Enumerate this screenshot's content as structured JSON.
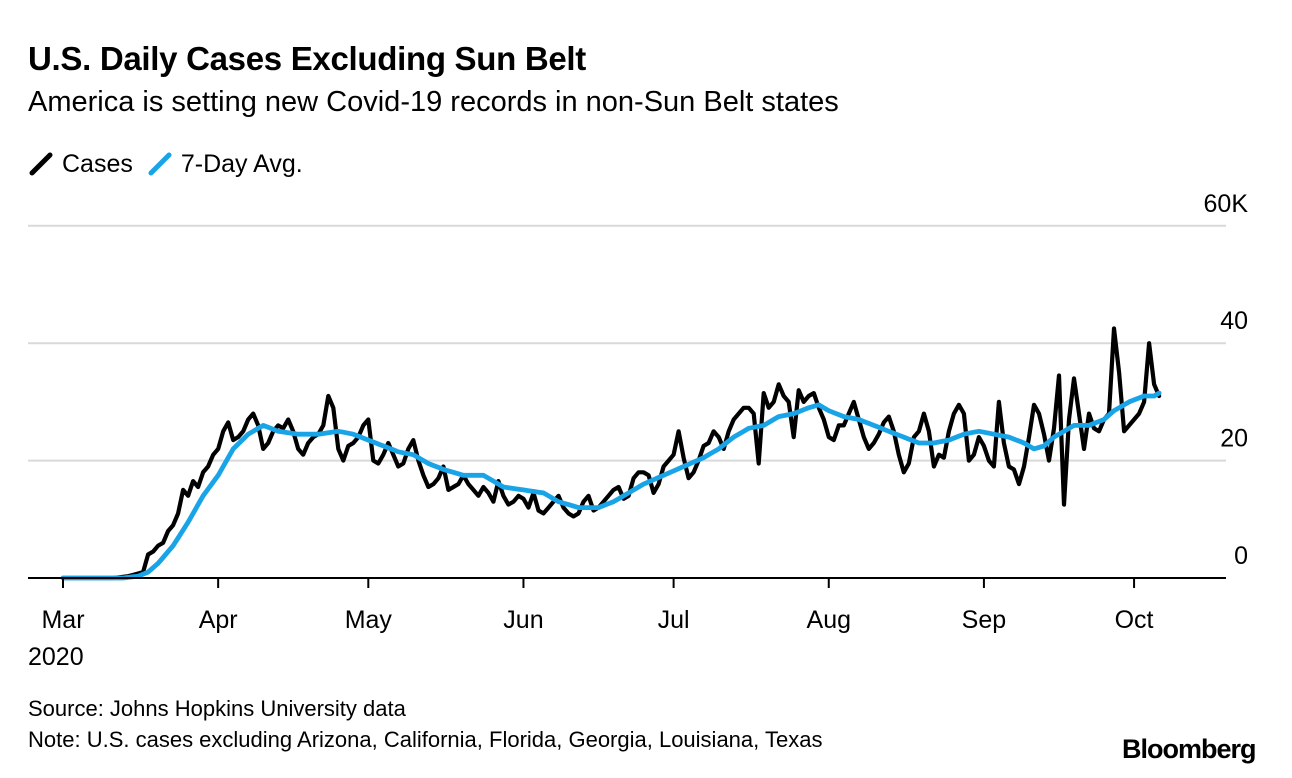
{
  "chart_data": {
    "type": "line",
    "title": "U.S. Daily Cases Excluding Sun Belt",
    "subtitle": "America is setting new Covid-19 records in non-Sun Belt states",
    "xlabel": "",
    "ylabel": "",
    "y_unit": "thousands",
    "ylim": [
      0,
      60
    ],
    "y_ticks": [
      {
        "value": 60,
        "label": "60K"
      },
      {
        "value": 40,
        "label": "40"
      },
      {
        "value": 20,
        "label": "20"
      },
      {
        "value": 0,
        "label": "0"
      }
    ],
    "x_start": "2020-03-01",
    "x_end": "2020-10-04",
    "x_ticks": [
      {
        "day": 0,
        "label": "Mar"
      },
      {
        "day": 31,
        "label": "Apr"
      },
      {
        "day": 61,
        "label": "May"
      },
      {
        "day": 92,
        "label": "Jun"
      },
      {
        "day": 122,
        "label": "Jul"
      },
      {
        "day": 153,
        "label": "Aug"
      },
      {
        "day": 184,
        "label": "Sep"
      },
      {
        "day": 214,
        "label": "Oct"
      }
    ],
    "x_year_label": "2020",
    "legend_position": "top-left",
    "grid": true,
    "series": [
      {
        "name": "Cases",
        "color": "#000000",
        "anchors": [
          [
            0,
            0
          ],
          [
            10,
            0
          ],
          [
            13,
            0.3
          ],
          [
            16,
            1
          ],
          [
            17,
            4
          ],
          [
            18,
            4.5
          ],
          [
            19,
            5.5
          ],
          [
            20,
            6
          ],
          [
            21,
            8
          ],
          [
            22,
            9
          ],
          [
            23,
            11
          ],
          [
            24,
            15
          ],
          [
            25,
            14
          ],
          [
            26,
            16.5
          ],
          [
            27,
            15.5
          ],
          [
            28,
            18
          ],
          [
            29,
            19
          ],
          [
            30,
            21
          ],
          [
            31,
            22
          ],
          [
            32,
            25
          ],
          [
            33,
            26.5
          ],
          [
            34,
            23.5
          ],
          [
            35,
            24
          ],
          [
            36,
            25
          ],
          [
            37,
            27
          ],
          [
            38,
            28
          ],
          [
            39,
            26
          ],
          [
            40,
            22
          ],
          [
            41,
            23
          ],
          [
            42,
            25
          ],
          [
            43,
            26
          ],
          [
            44,
            25.5
          ],
          [
            45,
            27
          ],
          [
            46,
            25
          ],
          [
            47,
            22
          ],
          [
            48,
            21
          ],
          [
            49,
            23
          ],
          [
            50,
            24
          ],
          [
            51,
            24.5
          ],
          [
            52,
            26
          ],
          [
            53,
            31
          ],
          [
            54,
            29
          ],
          [
            55,
            22
          ],
          [
            56,
            20
          ],
          [
            57,
            22.5
          ],
          [
            58,
            23
          ],
          [
            59,
            24
          ],
          [
            60,
            26
          ],
          [
            61,
            27
          ],
          [
            62,
            20
          ],
          [
            63,
            19.5
          ],
          [
            64,
            21
          ],
          [
            65,
            23
          ],
          [
            66,
            21
          ],
          [
            67,
            19
          ],
          [
            68,
            19.5
          ],
          [
            69,
            22
          ],
          [
            70,
            23.5
          ],
          [
            71,
            20
          ],
          [
            72,
            17.5
          ],
          [
            73,
            15.5
          ],
          [
            74,
            16
          ],
          [
            75,
            17
          ],
          [
            76,
            19
          ],
          [
            77,
            15
          ],
          [
            78,
            15.5
          ],
          [
            79,
            16
          ],
          [
            80,
            17.5
          ],
          [
            81,
            16
          ],
          [
            82,
            15
          ],
          [
            83,
            14
          ],
          [
            84,
            15.5
          ],
          [
            85,
            14.5
          ],
          [
            86,
            13
          ],
          [
            87,
            16.5
          ],
          [
            88,
            14
          ],
          [
            89,
            12.5
          ],
          [
            90,
            13
          ],
          [
            91,
            14
          ],
          [
            92,
            13.5
          ],
          [
            93,
            12
          ],
          [
            94,
            14.5
          ],
          [
            95,
            11.5
          ],
          [
            96,
            11
          ],
          [
            97,
            12
          ],
          [
            98,
            13
          ],
          [
            99,
            14
          ],
          [
            100,
            12
          ],
          [
            101,
            11
          ],
          [
            102,
            10.5
          ],
          [
            103,
            11
          ],
          [
            104,
            13
          ],
          [
            105,
            14
          ],
          [
            106,
            11.5
          ],
          [
            107,
            12
          ],
          [
            108,
            13
          ],
          [
            109,
            14
          ],
          [
            110,
            15
          ],
          [
            111,
            15.5
          ],
          [
            112,
            13.5
          ],
          [
            113,
            14
          ],
          [
            114,
            17
          ],
          [
            115,
            18
          ],
          [
            116,
            18
          ],
          [
            117,
            17.5
          ],
          [
            118,
            14.5
          ],
          [
            119,
            16
          ],
          [
            120,
            19
          ],
          [
            121,
            20
          ],
          [
            122,
            21
          ],
          [
            123,
            25
          ],
          [
            124,
            20.5
          ],
          [
            125,
            17
          ],
          [
            126,
            18
          ],
          [
            127,
            20
          ],
          [
            128,
            22.5
          ],
          [
            129,
            23
          ],
          [
            130,
            25
          ],
          [
            131,
            24
          ],
          [
            132,
            22
          ],
          [
            133,
            25
          ],
          [
            134,
            27
          ],
          [
            135,
            28
          ],
          [
            136,
            29
          ],
          [
            137,
            29
          ],
          [
            138,
            28
          ],
          [
            139,
            19.5
          ],
          [
            140,
            31.5
          ],
          [
            141,
            29
          ],
          [
            142,
            30
          ],
          [
            143,
            33
          ],
          [
            144,
            31
          ],
          [
            145,
            30
          ],
          [
            146,
            24
          ],
          [
            147,
            32
          ],
          [
            148,
            30
          ],
          [
            149,
            31
          ],
          [
            150,
            31.5
          ],
          [
            151,
            29
          ],
          [
            152,
            27
          ],
          [
            153,
            24
          ],
          [
            154,
            23.5
          ],
          [
            155,
            26
          ],
          [
            156,
            26
          ],
          [
            157,
            28
          ],
          [
            158,
            30
          ],
          [
            159,
            27
          ],
          [
            160,
            24
          ],
          [
            161,
            22
          ],
          [
            162,
            23
          ],
          [
            163,
            24.5
          ],
          [
            164,
            26.5
          ],
          [
            165,
            27.5
          ],
          [
            166,
            25
          ],
          [
            167,
            21
          ],
          [
            168,
            18
          ],
          [
            169,
            19.5
          ],
          [
            170,
            24
          ],
          [
            171,
            25
          ],
          [
            172,
            28
          ],
          [
            173,
            25
          ],
          [
            174,
            19
          ],
          [
            175,
            21
          ],
          [
            176,
            20.5
          ],
          [
            177,
            25
          ],
          [
            178,
            28
          ],
          [
            179,
            29.5
          ],
          [
            180,
            28
          ],
          [
            181,
            20
          ],
          [
            182,
            21
          ],
          [
            183,
            24
          ],
          [
            184,
            22.5
          ],
          [
            185,
            20
          ],
          [
            186,
            19
          ],
          [
            187,
            30
          ],
          [
            188,
            23
          ],
          [
            189,
            19
          ],
          [
            190,
            18.5
          ],
          [
            191,
            16
          ],
          [
            192,
            19
          ],
          [
            193,
            24
          ],
          [
            194,
            29.5
          ],
          [
            195,
            28
          ],
          [
            196,
            24.5
          ],
          [
            197,
            20
          ],
          [
            198,
            25.5
          ],
          [
            199,
            34.5
          ],
          [
            200,
            12.5
          ],
          [
            201,
            27
          ],
          [
            202,
            34
          ],
          [
            203,
            28
          ],
          [
            204,
            22
          ],
          [
            205,
            28
          ],
          [
            206,
            25.5
          ],
          [
            207,
            25
          ],
          [
            208,
            27
          ],
          [
            209,
            28
          ],
          [
            210,
            42.5
          ],
          [
            211,
            35
          ],
          [
            212,
            25
          ],
          [
            213,
            26
          ],
          [
            214,
            27
          ],
          [
            215,
            28
          ],
          [
            216,
            30
          ],
          [
            217,
            40
          ],
          [
            218,
            33
          ],
          [
            219,
            31
          ]
        ]
      },
      {
        "name": "7-Day Avg.",
        "color": "#1aa4e8",
        "anchors": [
          [
            0,
            0
          ],
          [
            12,
            0
          ],
          [
            15,
            0.3
          ],
          [
            17,
            1
          ],
          [
            19,
            2.5
          ],
          [
            22,
            5.5
          ],
          [
            25,
            9.5
          ],
          [
            28,
            14
          ],
          [
            31,
            17.5
          ],
          [
            34,
            22
          ],
          [
            37,
            24.5
          ],
          [
            40,
            26
          ],
          [
            43,
            25
          ],
          [
            47,
            24.5
          ],
          [
            51,
            24.5
          ],
          [
            55,
            25
          ],
          [
            58,
            24.5
          ],
          [
            61,
            23.5
          ],
          [
            64,
            22.5
          ],
          [
            67,
            21.5
          ],
          [
            70,
            21
          ],
          [
            73,
            19.5
          ],
          [
            76,
            18.5
          ],
          [
            80,
            17.5
          ],
          [
            84,
            17.5
          ],
          [
            88,
            15.5
          ],
          [
            92,
            15
          ],
          [
            96,
            14.5
          ],
          [
            99,
            13
          ],
          [
            103,
            12
          ],
          [
            107,
            12
          ],
          [
            110,
            13
          ],
          [
            113,
            14.5
          ],
          [
            116,
            16
          ],
          [
            120,
            17.5
          ],
          [
            124,
            19
          ],
          [
            128,
            20.5
          ],
          [
            131,
            22
          ],
          [
            134,
            24
          ],
          [
            137,
            25.5
          ],
          [
            140,
            26
          ],
          [
            143,
            27.5
          ],
          [
            146,
            28
          ],
          [
            149,
            29
          ],
          [
            151,
            29.5
          ],
          [
            153,
            28.5
          ],
          [
            156,
            27.5
          ],
          [
            159,
            27
          ],
          [
            162,
            26
          ],
          [
            165,
            25
          ],
          [
            168,
            24
          ],
          [
            171,
            23
          ],
          [
            174,
            23
          ],
          [
            177,
            23.5
          ],
          [
            180,
            24.5
          ],
          [
            183,
            25
          ],
          [
            186,
            24.5
          ],
          [
            189,
            24
          ],
          [
            192,
            23
          ],
          [
            194,
            22
          ],
          [
            196,
            22.5
          ],
          [
            198,
            24
          ],
          [
            200,
            25
          ],
          [
            202,
            26
          ],
          [
            205,
            26
          ],
          [
            208,
            27
          ],
          [
            210,
            28.5
          ],
          [
            213,
            30
          ],
          [
            216,
            31
          ],
          [
            218,
            31
          ],
          [
            219,
            31.5
          ]
        ]
      }
    ],
    "source": "Source: Johns Hopkins University data",
    "note": "Note: U.S. cases excluding Arizona, California, Florida, Georgia, Louisiana, Texas",
    "logo": "Bloomberg"
  }
}
